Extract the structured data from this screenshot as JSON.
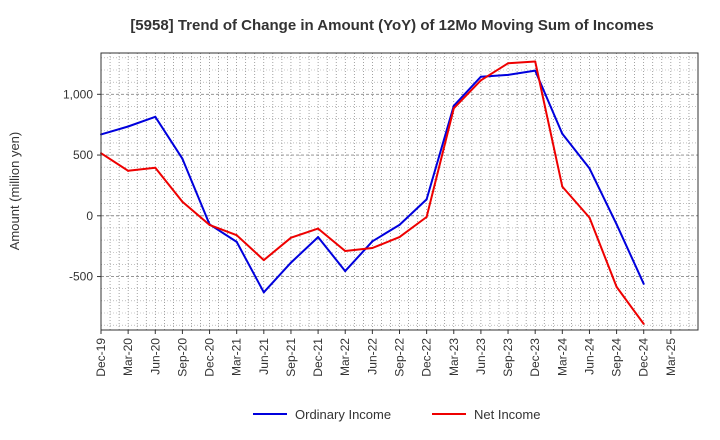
{
  "chart_data": {
    "type": "line",
    "title": "[5958]  Trend of Change in Amount (YoY) of 12Mo Moving Sum of Incomes",
    "xlabel": "",
    "ylabel": "Amount (million yen)",
    "ylim": [
      -940,
      1340
    ],
    "yticks": [
      1000,
      500,
      0,
      -500
    ],
    "ytick_labels": [
      "1,000",
      "500",
      "0",
      "-500"
    ],
    "categories": [
      "Dec-19",
      "Mar-20",
      "Jun-20",
      "Sep-20",
      "Dec-20",
      "Mar-21",
      "Jun-21",
      "Sep-21",
      "Dec-21",
      "Mar-22",
      "Jun-22",
      "Sep-22",
      "Dec-22",
      "Mar-23",
      "Jun-23",
      "Sep-23",
      "Dec-23",
      "Mar-24",
      "Jun-24",
      "Sep-24",
      "Dec-24",
      "Mar-25"
    ],
    "grid": true,
    "legend_position": "bottom",
    "series": [
      {
        "name": "Ordinary Income",
        "color": "#0000dd",
        "values": [
          670,
          735,
          815,
          470,
          -70,
          -215,
          -630,
          -385,
          -175,
          -455,
          -210,
          -75,
          135,
          905,
          1145,
          1160,
          1195,
          675,
          390,
          -70,
          -560,
          null
        ]
      },
      {
        "name": "Net Income",
        "color": "#ee0000",
        "values": [
          515,
          370,
          395,
          115,
          -75,
          -160,
          -365,
          -180,
          -105,
          -290,
          -265,
          -175,
          -10,
          885,
          1115,
          1255,
          1270,
          240,
          -15,
          -585,
          -890,
          null
        ]
      }
    ]
  }
}
